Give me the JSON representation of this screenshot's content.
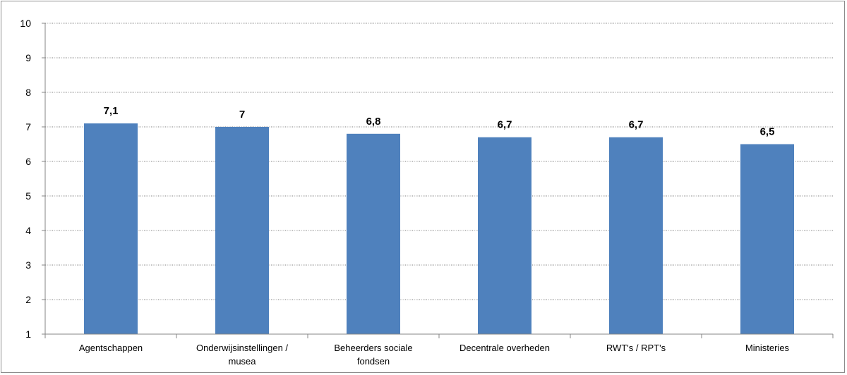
{
  "chart_data": {
    "type": "bar",
    "categories": [
      "Agentschappen",
      "Onderwijsinstellingen / musea",
      "Beheerders sociale fondsen",
      "Decentrale overheden",
      "RWT's / RPT's",
      "Ministeries"
    ],
    "category_lines": [
      [
        "Agentschappen"
      ],
      [
        "Onderwijsinstellingen /",
        "musea"
      ],
      [
        "Beheerders sociale",
        "fondsen"
      ],
      [
        "Decentrale overheden"
      ],
      [
        "RWT's / RPT's"
      ],
      [
        "Ministeries"
      ]
    ],
    "values": [
      7.1,
      7.0,
      6.8,
      6.7,
      6.7,
      6.5
    ],
    "data_labels": [
      "7,1",
      "7",
      "6,8",
      "6,7",
      "6,7",
      "6,5"
    ],
    "ylim": [
      1,
      10
    ],
    "yticks": [
      1,
      2,
      3,
      4,
      5,
      6,
      7,
      8,
      9,
      10
    ],
    "grid": true,
    "grid_style": "dotted",
    "bar_color": "#4F81BD",
    "title": "",
    "xlabel": "",
    "ylabel": ""
  }
}
